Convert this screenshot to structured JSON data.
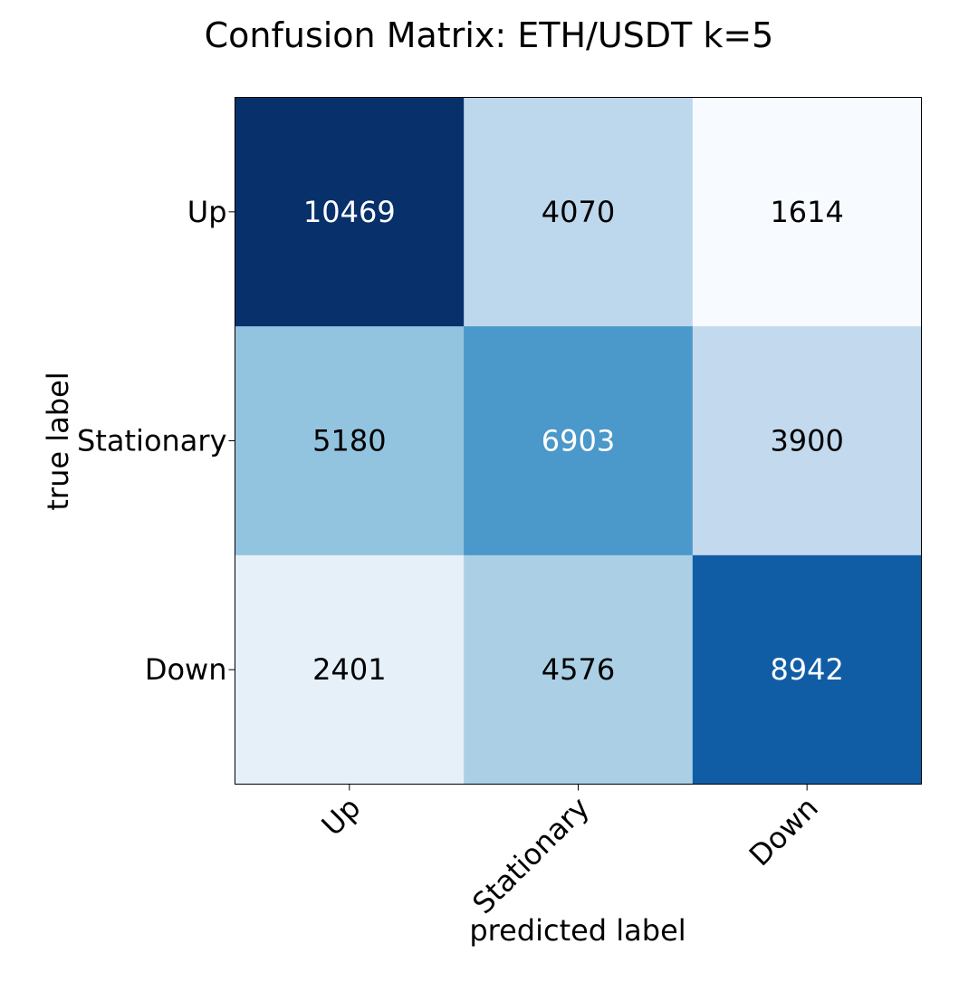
{
  "chart_data": {
    "type": "heatmap",
    "title": "Confusion Matrix: ETH/USDT k=5",
    "xlabel": "predicted label",
    "ylabel": "true label",
    "x_categories": [
      "Up",
      "Stationary",
      "Down"
    ],
    "y_categories": [
      "Up",
      "Stationary",
      "Down"
    ],
    "values": [
      [
        10469,
        4070,
        1614
      ],
      [
        5180,
        6903,
        3900
      ],
      [
        2401,
        4576,
        8942
      ]
    ],
    "colormap": "Blues",
    "color_range": [
      1614,
      10469
    ],
    "grid": false,
    "legend": "none"
  }
}
